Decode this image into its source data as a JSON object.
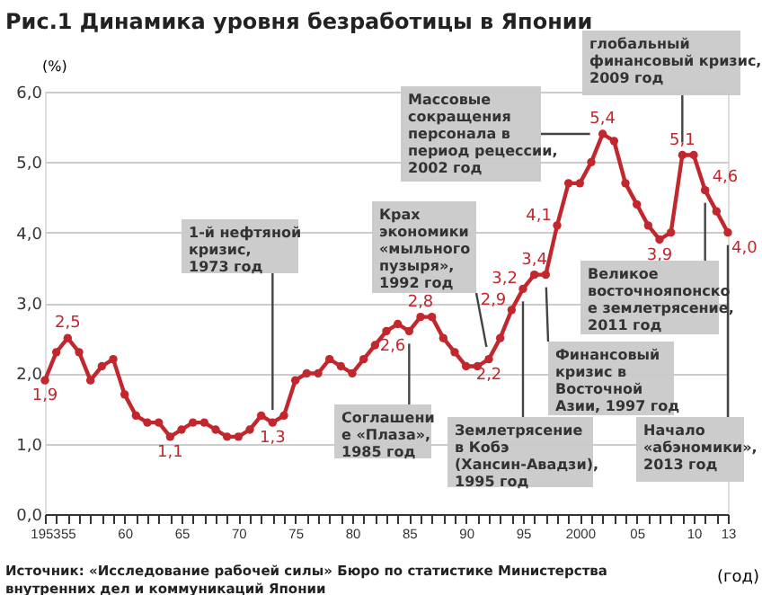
{
  "chart_data": {
    "type": "line",
    "title": "Рис.1 Динамика уровня безработицы в Японии",
    "ylabel": "(%)",
    "xlabel": "(год)",
    "x": [
      1953,
      1954,
      1955,
      1956,
      1957,
      1958,
      1959,
      1960,
      1961,
      1962,
      1963,
      1964,
      1965,
      1966,
      1967,
      1968,
      1969,
      1970,
      1971,
      1972,
      1973,
      1974,
      1975,
      1976,
      1977,
      1978,
      1979,
      1980,
      1981,
      1982,
      1983,
      1984,
      1985,
      1986,
      1987,
      1988,
      1989,
      1990,
      1991,
      1992,
      1993,
      1994,
      1995,
      1996,
      1997,
      1998,
      1999,
      2000,
      2001,
      2002,
      2003,
      2004,
      2005,
      2006,
      2007,
      2008,
      2009,
      2010,
      2011,
      2012,
      2013
    ],
    "series": [
      {
        "color": "#c1272d",
        "values": [
          1.9,
          2.3,
          2.5,
          2.3,
          1.9,
          2.1,
          2.2,
          1.7,
          1.4,
          1.3,
          1.3,
          1.1,
          1.2,
          1.3,
          1.3,
          1.2,
          1.1,
          1.1,
          1.2,
          1.4,
          1.3,
          1.4,
          1.9,
          2.0,
          2.0,
          2.2,
          2.1,
          2.0,
          2.2,
          2.4,
          2.6,
          2.7,
          2.6,
          2.8,
          2.8,
          2.5,
          2.3,
          2.1,
          2.1,
          2.2,
          2.5,
          2.9,
          3.2,
          3.4,
          3.4,
          4.1,
          4.7,
          4.7,
          5.0,
          5.4,
          5.3,
          4.7,
          4.4,
          4.1,
          3.9,
          4.0,
          5.1,
          5.1,
          4.6,
          4.3,
          4.0
        ],
        "value_labels": [
          "1,9",
          null,
          "2,5",
          null,
          null,
          null,
          null,
          null,
          null,
          null,
          null,
          "1,1",
          null,
          null,
          null,
          null,
          null,
          null,
          null,
          null,
          "1,3",
          null,
          null,
          null,
          null,
          null,
          null,
          null,
          null,
          null,
          null,
          null,
          "2,6",
          "2,8",
          null,
          null,
          null,
          null,
          null,
          "2,2",
          null,
          "2,9",
          "3,2",
          "3,4",
          null,
          "4,1",
          null,
          null,
          null,
          "5,4",
          null,
          null,
          null,
          null,
          "3,9",
          null,
          "5,1",
          null,
          "4,6",
          null,
          "4,0"
        ]
      }
    ],
    "xlim": [
      1953,
      2013
    ],
    "xticks": [
      {
        "value": 1953,
        "label": "1953"
      },
      {
        "value": 1954,
        "label": null
      },
      {
        "value": 1955,
        "label": "55"
      },
      {
        "value": 1956,
        "label": null
      },
      {
        "value": 1957,
        "label": null
      },
      {
        "value": 1958,
        "label": null
      },
      {
        "value": 1959,
        "label": null
      },
      {
        "value": 1960,
        "label": "60"
      },
      {
        "value": 1961,
        "label": null
      },
      {
        "value": 1962,
        "label": null
      },
      {
        "value": 1963,
        "label": null
      },
      {
        "value": 1964,
        "label": null
      },
      {
        "value": 1965,
        "label": "65"
      },
      {
        "value": 1966,
        "label": null
      },
      {
        "value": 1967,
        "label": null
      },
      {
        "value": 1968,
        "label": null
      },
      {
        "value": 1969,
        "label": null
      },
      {
        "value": 1970,
        "label": "70"
      },
      {
        "value": 1971,
        "label": null
      },
      {
        "value": 1972,
        "label": null
      },
      {
        "value": 1973,
        "label": null
      },
      {
        "value": 1974,
        "label": null
      },
      {
        "value": 1975,
        "label": "75"
      },
      {
        "value": 1976,
        "label": null
      },
      {
        "value": 1977,
        "label": null
      },
      {
        "value": 1978,
        "label": null
      },
      {
        "value": 1979,
        "label": null
      },
      {
        "value": 1980,
        "label": "80"
      },
      {
        "value": 1981,
        "label": null
      },
      {
        "value": 1982,
        "label": null
      },
      {
        "value": 1983,
        "label": null
      },
      {
        "value": 1984,
        "label": null
      },
      {
        "value": 1985,
        "label": "85"
      },
      {
        "value": 1986,
        "label": null
      },
      {
        "value": 1987,
        "label": null
      },
      {
        "value": 1988,
        "label": null
      },
      {
        "value": 1989,
        "label": null
      },
      {
        "value": 1990,
        "label": "90"
      },
      {
        "value": 1991,
        "label": null
      },
      {
        "value": 1992,
        "label": null
      },
      {
        "value": 1993,
        "label": null
      },
      {
        "value": 1994,
        "label": null
      },
      {
        "value": 1995,
        "label": "95"
      },
      {
        "value": 1996,
        "label": null
      },
      {
        "value": 1997,
        "label": null
      },
      {
        "value": 1998,
        "label": null
      },
      {
        "value": 1999,
        "label": null
      },
      {
        "value": 2000,
        "label": "2000"
      },
      {
        "value": 2001,
        "label": null
      },
      {
        "value": 2002,
        "label": null
      },
      {
        "value": 2003,
        "label": null
      },
      {
        "value": 2004,
        "label": null
      },
      {
        "value": 2005,
        "label": "05"
      },
      {
        "value": 2006,
        "label": null
      },
      {
        "value": 2007,
        "label": null
      },
      {
        "value": 2008,
        "label": null
      },
      {
        "value": 2009,
        "label": null
      },
      {
        "value": 2010,
        "label": "10"
      },
      {
        "value": 2011,
        "label": null
      },
      {
        "value": 2012,
        "label": null
      },
      {
        "value": 2013,
        "label": "13"
      }
    ],
    "ylim": [
      0,
      6
    ],
    "yticks": [
      {
        "value": 0,
        "label": "0,0"
      },
      {
        "value": 1,
        "label": "1,0"
      },
      {
        "value": 2,
        "label": "2,0"
      },
      {
        "value": 3,
        "label": "3,0"
      },
      {
        "value": 4,
        "label": "4,0"
      },
      {
        "value": 5,
        "label": "5,0"
      },
      {
        "value": 6,
        "label": "6,0"
      }
    ],
    "grid": "y",
    "marker": "circle",
    "line_style": "solid",
    "annotations": [
      {
        "text": "1-й нефтяной\nкризис,\n1973 год",
        "x": 1973,
        "y": 1.3
      },
      {
        "text": "Соглашени\nе «Плаза»,\n1985 год",
        "x": 1985,
        "y": 2.6
      },
      {
        "text": "Крах\nэкономики\n«мыльного\nпузыря»,\n1992 год",
        "x": 1992,
        "y": 2.2
      },
      {
        "text": "Землетрясение\nв Кобэ\n(Хансин-Авадзи),\n1995 год",
        "x": 1995,
        "y": 3.2
      },
      {
        "text": "Финансовый\nкризис в\nВосточной\nАзии, 1997 год",
        "x": 1997,
        "y": 3.4
      },
      {
        "text": "Массовые\nсокращения\nперсонала в\nпериод рецессии,\n2002 год",
        "x": 2002,
        "y": 5.4
      },
      {
        "text": "глобальный\nфинансовый кризис,\n2009 год",
        "x": 2009,
        "y": 5.1
      },
      {
        "text": "Великое\nвосточнояпонско\nе землетрясение,\n2011 год",
        "x": 2011,
        "y": 4.6
      },
      {
        "text": "Начало\n«абэномики»,\n2013 год",
        "x": 2013,
        "y": 4.0
      },
      "Источник: «Исследование рабочей силы» Бюро по статистике Министерства внутренних дел и коммуникаций Японии"
    ]
  }
}
